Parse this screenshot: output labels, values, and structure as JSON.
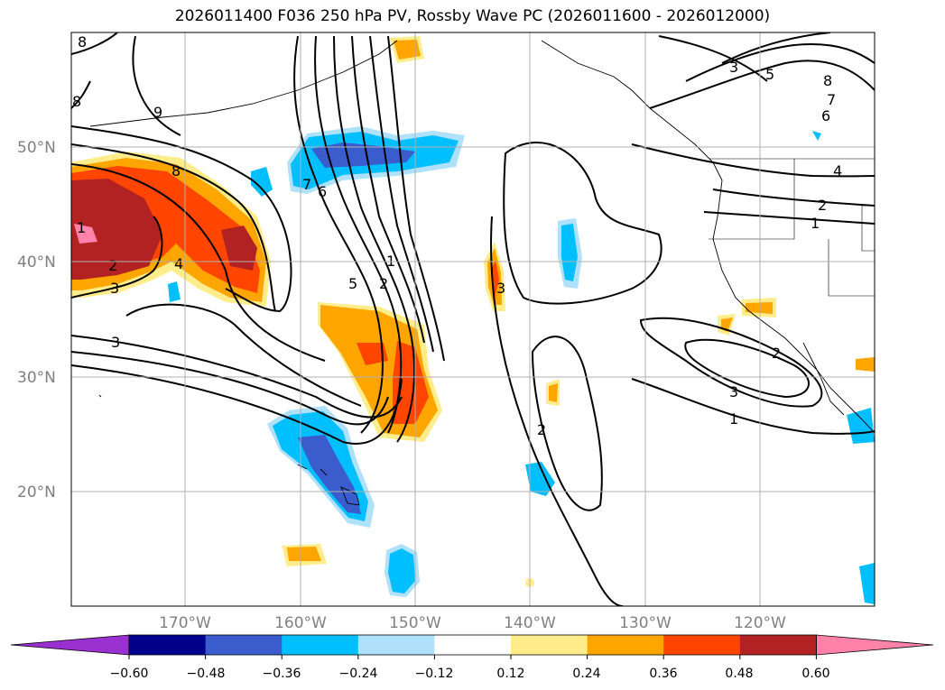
{
  "title": "2026011400 F036 250 hPa PV, Rossby Wave PC (2026011600 - 2026012000)",
  "map": {
    "lat_labels": [
      "50°N",
      "40°N",
      "30°N",
      "20°N"
    ],
    "lon_labels": [
      "170°W",
      "160°W",
      "150°W",
      "140°W",
      "130°W",
      "120°W"
    ],
    "extent": {
      "lon": [
        -180,
        -110
      ],
      "lat": [
        10,
        60
      ]
    },
    "contour_labels": [
      "8",
      "9",
      "8",
      "8",
      "7",
      "6",
      "2",
      "3",
      "4",
      "1",
      "2",
      "3",
      "5",
      "1",
      "3",
      "5",
      "8",
      "7",
      "6",
      "4",
      "2",
      "1",
      "2",
      "3",
      "1",
      "2",
      "3"
    ]
  },
  "colorbar": {
    "tick_labels": [
      "−0.60",
      "−0.48",
      "−0.36",
      "−0.24",
      "−0.12",
      "0.12",
      "0.24",
      "0.36",
      "0.48",
      "0.60"
    ],
    "colors": [
      "#9b30d0",
      "#00008b",
      "#3a5ccc",
      "#00bfff",
      "#afe1fa",
      "#ffffff",
      "#ffec8b",
      "#ffa500",
      "#ff4500",
      "#b22222",
      "#ff82ab"
    ]
  }
}
